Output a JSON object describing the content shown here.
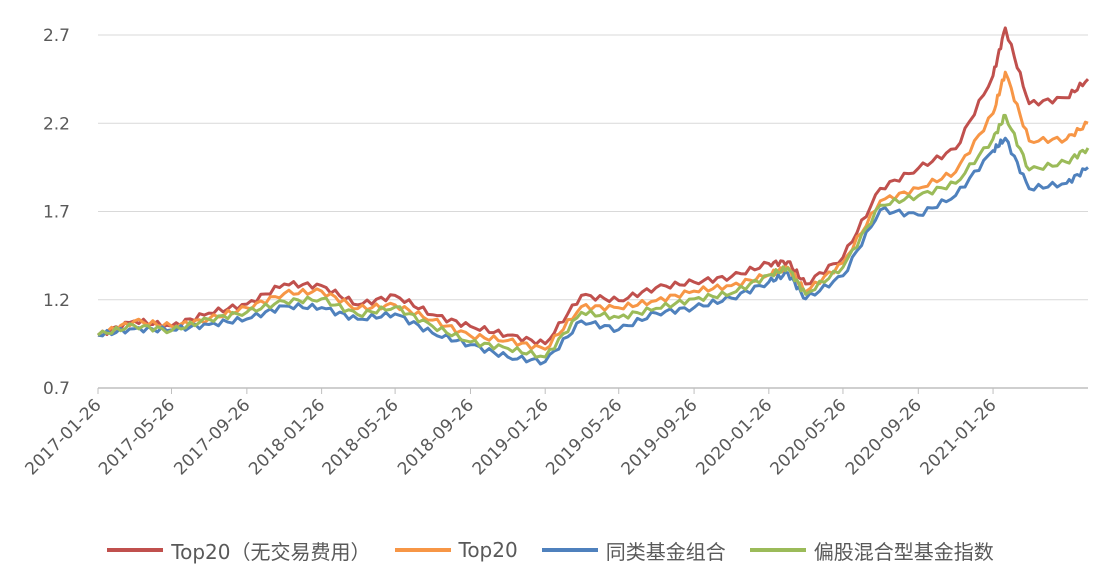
{
  "chart_data": {
    "type": "line",
    "title": "",
    "xlabel": "",
    "ylabel": "",
    "ylim": [
      0.7,
      2.8
    ],
    "yticks": [
      "0.7",
      "1.2",
      "1.7",
      "2.2",
      "2.7"
    ],
    "xticks": [
      "2017-01-26",
      "2017-05-26",
      "2017-09-26",
      "2018-01-26",
      "2018-05-26",
      "2018-09-26",
      "2019-01-26",
      "2019-05-26",
      "2019-09-26",
      "2020-01-26",
      "2020-05-26",
      "2020-09-26",
      "2021-01-26"
    ],
    "grid": true,
    "legend_position": "bottom",
    "x": [
      "2017-01-26",
      "2017-03-26",
      "2017-05-26",
      "2017-07-26",
      "2017-09-26",
      "2017-11-26",
      "2018-01-26",
      "2018-03-26",
      "2018-05-26",
      "2018-07-26",
      "2018-09-26",
      "2018-11-26",
      "2019-01-26",
      "2019-03-26",
      "2019-05-26",
      "2019-07-26",
      "2019-09-26",
      "2019-11-26",
      "2020-01-26",
      "2020-02-26",
      "2020-03-26",
      "2020-05-26",
      "2020-07-26",
      "2020-09-26",
      "2020-11-26",
      "2021-01-26",
      "2021-02-15",
      "2021-03-26",
      "2021-05-26",
      "2021-06-30"
    ],
    "series": [
      {
        "name": "Top20（无交易费用）",
        "color": "#C0504D",
        "values": [
          1.0,
          1.08,
          1.06,
          1.12,
          1.18,
          1.28,
          1.28,
          1.18,
          1.22,
          1.12,
          1.04,
          1.0,
          0.96,
          1.22,
          1.2,
          1.26,
          1.3,
          1.34,
          1.4,
          1.42,
          1.28,
          1.44,
          1.84,
          1.94,
          2.06,
          2.46,
          2.74,
          2.32,
          2.34,
          2.45
        ]
      },
      {
        "name": "Top20",
        "color": "#F79646",
        "values": [
          1.0,
          1.07,
          1.05,
          1.1,
          1.15,
          1.24,
          1.24,
          1.15,
          1.18,
          1.08,
          1.0,
          0.96,
          0.92,
          1.17,
          1.15,
          1.2,
          1.24,
          1.28,
          1.35,
          1.38,
          1.25,
          1.4,
          1.76,
          1.84,
          1.92,
          2.26,
          2.48,
          2.1,
          2.12,
          2.2
        ]
      },
      {
        "name": "同类基金组合",
        "color": "#4F81BD",
        "values": [
          1.0,
          1.04,
          1.02,
          1.06,
          1.1,
          1.16,
          1.16,
          1.08,
          1.12,
          1.02,
          0.94,
          0.88,
          0.84,
          1.08,
          1.04,
          1.12,
          1.16,
          1.2,
          1.3,
          1.36,
          1.2,
          1.34,
          1.7,
          1.68,
          1.8,
          2.04,
          2.12,
          1.82,
          1.86,
          1.95
        ]
      },
      {
        "name": "偏股混合型基金指数",
        "color": "#9BBB59",
        "values": [
          1.0,
          1.05,
          1.03,
          1.08,
          1.13,
          1.2,
          1.2,
          1.12,
          1.15,
          1.05,
          0.97,
          0.92,
          0.88,
          1.12,
          1.1,
          1.16,
          1.2,
          1.24,
          1.33,
          1.38,
          1.24,
          1.38,
          1.74,
          1.78,
          1.86,
          2.12,
          2.24,
          1.94,
          1.97,
          2.06
        ]
      }
    ]
  }
}
